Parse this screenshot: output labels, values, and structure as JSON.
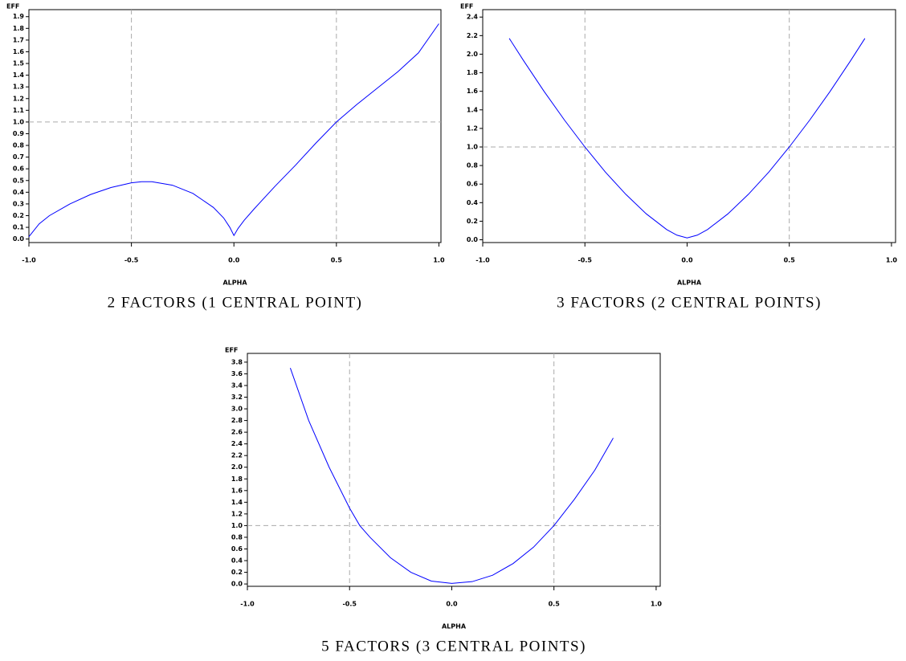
{
  "chart_data": [
    {
      "type": "line",
      "title": "2 FACTORS (1 CENTRAL POINT)",
      "x_label": "ALPHA",
      "y_label": "EFF",
      "color": "#0000ff",
      "x": [
        -1,
        -0.95,
        -0.9,
        -0.8,
        -0.7,
        -0.6,
        -0.5,
        -0.45,
        -0.4,
        -0.3,
        -0.2,
        -0.1,
        -0.05,
        -0.02,
        0,
        0.02,
        0.05,
        0.1,
        0.2,
        0.3,
        0.4,
        0.5,
        0.6,
        0.7,
        0.8,
        0.9,
        1.0
      ],
      "values": [
        0.02,
        0.13,
        0.2,
        0.3,
        0.38,
        0.44,
        0.48,
        0.49,
        0.49,
        0.46,
        0.39,
        0.27,
        0.18,
        0.1,
        0.03,
        0.09,
        0.16,
        0.26,
        0.45,
        0.63,
        0.82,
        1.0,
        1.15,
        1.29,
        1.43,
        1.59,
        1.84
      ],
      "xlim": [
        -1,
        1.01
      ],
      "ylim": [
        -0.03,
        1.96
      ],
      "xticks": [
        {
          "value": -1,
          "label": "-1.0"
        },
        {
          "value": -0.5,
          "label": "-0.5"
        },
        {
          "value": 0,
          "label": "0.0"
        },
        0.5,
        {
          "value": 1,
          "label": "1.0"
        }
      ],
      "yticks": [
        {
          "value": 0,
          "label": "0.0"
        },
        0.1,
        0.2,
        0.3,
        0.4,
        0.5,
        0.6,
        0.7,
        0.8,
        0.9,
        {
          "value": 1,
          "label": "1.0"
        },
        1.1,
        1.2,
        1.3,
        1.4,
        1.5,
        1.6,
        1.7,
        1.8,
        1.9
      ],
      "reference_lines": {
        "x": [
          -0.5,
          0.5
        ],
        "y": [
          1
        ]
      }
    },
    {
      "type": "line",
      "title": "3 FACTORS (2 CENTRAL POINTS)",
      "x_label": "ALPHA",
      "y_label": "EFF",
      "color": "#0000ff",
      "x": [
        -0.87,
        -0.8,
        -0.7,
        -0.6,
        -0.5,
        -0.4,
        -0.3,
        -0.2,
        -0.1,
        -0.05,
        0,
        0.05,
        0.1,
        0.2,
        0.3,
        0.4,
        0.5,
        0.6,
        0.7,
        0.8,
        0.87
      ],
      "values": [
        2.17,
        1.93,
        1.6,
        1.29,
        1.0,
        0.73,
        0.49,
        0.28,
        0.11,
        0.05,
        0.02,
        0.05,
        0.11,
        0.28,
        0.49,
        0.73,
        1.0,
        1.29,
        1.6,
        1.93,
        2.17
      ],
      "xlim": [
        -1,
        1.02
      ],
      "ylim": [
        -0.03,
        2.48
      ],
      "xticks": [
        {
          "value": -1,
          "label": "-1.0"
        },
        {
          "value": -0.5,
          "label": "-0.5"
        },
        {
          "value": 0,
          "label": "0.0"
        },
        0.5,
        {
          "value": 1,
          "label": "1.0"
        }
      ],
      "yticks": [
        {
          "value": 0,
          "label": "0.0"
        },
        0.2,
        0.4,
        0.6,
        0.8,
        {
          "value": 1,
          "label": "1.0"
        },
        1.2,
        1.4,
        1.6,
        1.8,
        {
          "value": 2,
          "label": "2.0"
        },
        2.2,
        2.4
      ],
      "reference_lines": {
        "x": [
          -0.5,
          0.5
        ],
        "y": [
          1
        ]
      }
    },
    {
      "type": "line",
      "title": "5 FACTORS (3 CENTRAL POINTS)",
      "x_label": "ALPHA",
      "y_label": "EFF",
      "color": "#0000ff",
      "x": [
        -0.79,
        -0.7,
        -0.6,
        -0.5,
        -0.45,
        -0.4,
        -0.3,
        -0.2,
        -0.1,
        0,
        0.1,
        0.2,
        0.3,
        0.4,
        0.5,
        0.6,
        0.7,
        0.79
      ],
      "values": [
        3.7,
        2.8,
        2.0,
        1.3,
        1.0,
        0.8,
        0.45,
        0.2,
        0.05,
        0.01,
        0.04,
        0.15,
        0.35,
        0.63,
        1.0,
        1.45,
        1.95,
        2.5
      ],
      "xlim": [
        -1,
        1.02
      ],
      "ylim": [
        -0.04,
        3.95
      ],
      "xticks": [
        {
          "value": -1,
          "label": "-1.0"
        },
        {
          "value": -0.5,
          "label": "-0.5"
        },
        {
          "value": 0,
          "label": "0.0"
        },
        0.5,
        {
          "value": 1,
          "label": "1.0"
        }
      ],
      "yticks": [
        {
          "value": 0,
          "label": "0.0"
        },
        0.2,
        0.4,
        0.6,
        0.8,
        {
          "value": 1,
          "label": "1.0"
        },
        1.2,
        1.4,
        1.6,
        1.8,
        {
          "value": 2,
          "label": "2.0"
        },
        2.2,
        2.4,
        2.6,
        2.8,
        {
          "value": 3,
          "label": "3.0"
        },
        3.2,
        3.4,
        3.6,
        3.8
      ],
      "reference_lines": {
        "x": [
          -0.5,
          0.5
        ],
        "y": [
          1
        ]
      }
    }
  ]
}
